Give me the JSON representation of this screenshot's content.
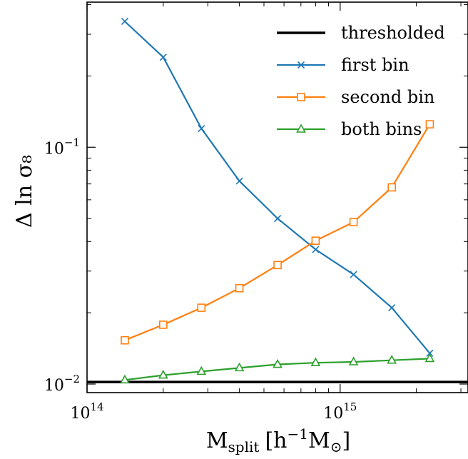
{
  "chart_data": {
    "type": "line",
    "title": "",
    "xlabel": {
      "main": "M",
      "sub": "split",
      "unit_open": "[h",
      "unit_sup": "−1",
      "unit_tail": "M",
      "unit_sub": "⊙",
      "unit_close": "]"
    },
    "ylabel": "Δ ln σ₈",
    "xscale": "log",
    "yscale": "log",
    "xlim": [
      100000000000000.0,
      3200000000000000.0
    ],
    "ylim": [
      0.0092,
      0.41
    ],
    "x_ticks": [
      {
        "value": 100000000000000.0,
        "base": "10",
        "exp": "14"
      },
      {
        "value": 1000000000000000.0,
        "base": "10",
        "exp": "15"
      }
    ],
    "y_ticks": [
      {
        "value": 0.01,
        "base": "10",
        "exp": "−2"
      },
      {
        "value": 0.1,
        "base": "10",
        "exp": "−1"
      }
    ],
    "legend_position": "top-right",
    "hlines": [
      {
        "name": "thresholded",
        "y": 0.0102,
        "color": "#000000"
      }
    ],
    "series": [
      {
        "name": "first bin",
        "color": "#1f77b4",
        "marker": "x",
        "x": [
          141000000000000.0,
          200000000000000.0,
          283000000000000.0,
          400000000000000.0,
          566000000000000.0,
          800000000000000.0,
          1130000000000000.0,
          1600000000000000.0,
          2260000000000000.0
        ],
        "y": [
          0.34,
          0.24,
          0.12,
          0.072,
          0.05,
          0.037,
          0.029,
          0.021,
          0.0135
        ]
      },
      {
        "name": "second bin",
        "color": "#ff7f0e",
        "marker": "square",
        "x": [
          141000000000000.0,
          200000000000000.0,
          283000000000000.0,
          400000000000000.0,
          566000000000000.0,
          800000000000000.0,
          1130000000000000.0,
          1600000000000000.0,
          2260000000000000.0
        ],
        "y": [
          0.0153,
          0.0178,
          0.021,
          0.0254,
          0.0318,
          0.0403,
          0.0483,
          0.0677,
          0.125
        ]
      },
      {
        "name": "both bins",
        "color": "#2ca02c",
        "marker": "triangle",
        "x": [
          141000000000000.0,
          200000000000000.0,
          283000000000000.0,
          400000000000000.0,
          566000000000000.0,
          800000000000000.0,
          1130000000000000.0,
          1600000000000000.0,
          2260000000000000.0
        ],
        "y": [
          0.0104,
          0.0109,
          0.0113,
          0.0117,
          0.0121,
          0.0123,
          0.0124,
          0.0126,
          0.0128
        ]
      }
    ]
  }
}
